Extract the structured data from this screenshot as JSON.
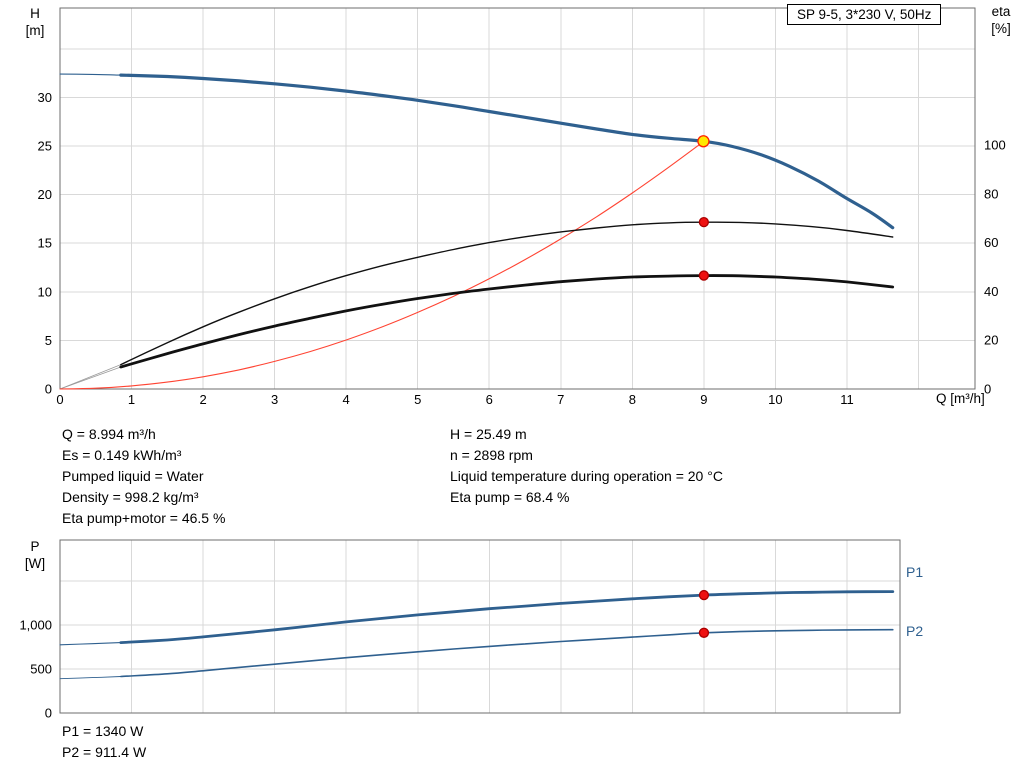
{
  "info_block": {
    "left": [
      "Q = 8.994 m³/h",
      "Es = 0.149 kWh/m³",
      "Pumped liquid = Water",
      "Density = 998.2 kg/m³",
      "Eta pump+motor = 46.5 %"
    ],
    "right": [
      "H = 25.49 m",
      "n = 2898 rpm",
      "Liquid temperature during operation = 20 °C",
      "Eta pump = 68.4 %"
    ]
  },
  "footer_block": [
    "P1 = 1340 W",
    "P2 = 911.4 W"
  ],
  "colors": {
    "curve_blue": "#2f608f",
    "curve_black": "#111111",
    "system_red": "#ff4433",
    "marker_red": "#ee1111",
    "marker_yellow": "#ffe800",
    "grid": "#d9d9d9",
    "frame": "#6e6e6e"
  },
  "chart_data": [
    {
      "type": "line",
      "title": "SP 9-5, 3*230 V, 50Hz",
      "xlabel": "Q [m³/h]",
      "ylabel_left": "H\n[m]",
      "ylabel_right": "eta\n[%]",
      "x_range": [
        0,
        12.79
      ],
      "x_grid": [
        1,
        2,
        3,
        4,
        5,
        6,
        7,
        8,
        9,
        10,
        11,
        12
      ],
      "x_ticks": [
        {
          "v": 0,
          "label": "0"
        },
        {
          "v": 1,
          "label": "1"
        },
        {
          "v": 2,
          "label": "2"
        },
        {
          "v": 3,
          "label": "3"
        },
        {
          "v": 4,
          "label": "4"
        },
        {
          "v": 5,
          "label": "5"
        },
        {
          "v": 6,
          "label": "6"
        },
        {
          "v": 7,
          "label": "7"
        },
        {
          "v": 8,
          "label": "8"
        },
        {
          "v": 9,
          "label": "9"
        },
        {
          "v": 10,
          "label": "10"
        },
        {
          "v": 11,
          "label": "11"
        }
      ],
      "y_left": {
        "range": [
          0,
          39.2
        ],
        "grid": [
          5,
          10,
          15,
          20,
          25,
          30,
          35
        ],
        "ticks": [
          {
            "v": 0,
            "label": "0"
          },
          {
            "v": 5,
            "label": "5"
          },
          {
            "v": 10,
            "label": "10"
          },
          {
            "v": 15,
            "label": "15"
          },
          {
            "v": 20,
            "label": "20"
          },
          {
            "v": 25,
            "label": "25"
          },
          {
            "v": 30,
            "label": "30"
          }
        ]
      },
      "y_right": {
        "range": [
          0,
          156.2
        ],
        "ticks": [
          {
            "v": 0,
            "label": "0"
          },
          {
            "v": 20,
            "label": "20"
          },
          {
            "v": 40,
            "label": "40"
          },
          {
            "v": 60,
            "label": "60"
          },
          {
            "v": 80,
            "label": "80"
          },
          {
            "v": 100,
            "label": "100"
          }
        ]
      },
      "grid_color": "#d9d9d9",
      "frame_color": "#6e6e6e",
      "series": [
        {
          "name": "pump-head-lead",
          "axis": "left",
          "color": "#2f608f",
          "width": 1.1,
          "points": [
            [
              0,
              32.4
            ],
            [
              0.45,
              32.37
            ],
            [
              0.85,
              32.3
            ]
          ]
        },
        {
          "name": "eta-pump-lead",
          "axis": "right",
          "color": "#9a9a9a",
          "width": 0.8,
          "points": [
            [
              0,
              0
            ],
            [
              0.85,
              10
            ]
          ]
        },
        {
          "name": "eta-pump-motor-lead",
          "axis": "right",
          "color": "#9a9a9a",
          "width": 0.8,
          "points": [
            [
              0,
              0
            ],
            [
              0.85,
              9
            ]
          ]
        },
        {
          "name": "system-curve",
          "axis": "left",
          "color": "#ff4433",
          "width": 1.1,
          "points": [
            [
              0,
              0
            ],
            [
              0.5,
              0.08
            ],
            [
              1,
              0.32
            ],
            [
              1.5,
              0.71
            ],
            [
              2,
              1.26
            ],
            [
              2.5,
              1.97
            ],
            [
              3,
              2.84
            ],
            [
              3.5,
              3.86
            ],
            [
              4,
              5.04
            ],
            [
              4.5,
              6.38
            ],
            [
              5,
              7.88
            ],
            [
              5.5,
              9.53
            ],
            [
              6,
              11.34
            ],
            [
              6.5,
              13.31
            ],
            [
              7,
              15.44
            ],
            [
              7.5,
              17.72
            ],
            [
              8,
              20.17
            ],
            [
              8.5,
              22.77
            ],
            [
              9,
              25.49
            ]
          ]
        },
        {
          "name": "pump-head",
          "axis": "left",
          "color": "#2f608f",
          "width": 3.2,
          "points": [
            [
              0.85,
              32.3
            ],
            [
              1.5,
              32.15
            ],
            [
              2,
              31.95
            ],
            [
              2.5,
              31.7
            ],
            [
              3,
              31.4
            ],
            [
              3.5,
              31.05
            ],
            [
              4,
              30.65
            ],
            [
              4.5,
              30.2
            ],
            [
              5,
              29.7
            ],
            [
              5.5,
              29.15
            ],
            [
              6,
              28.55
            ],
            [
              6.5,
              27.95
            ],
            [
              7,
              27.35
            ],
            [
              7.5,
              26.75
            ],
            [
              8,
              26.2
            ],
            [
              8.5,
              25.8
            ],
            [
              9,
              25.49
            ],
            [
              9.4,
              24.95
            ],
            [
              9.8,
              24.1
            ],
            [
              10.2,
              22.9
            ],
            [
              10.6,
              21.4
            ],
            [
              11,
              19.6
            ],
            [
              11.35,
              18.1
            ],
            [
              11.64,
              16.6
            ]
          ]
        },
        {
          "name": "eta-pump",
          "axis": "right",
          "color": "#111111",
          "width": 1.4,
          "points": [
            [
              0.85,
              10
            ],
            [
              1.5,
              19
            ],
            [
              2,
              25.5
            ],
            [
              2.5,
              31.5
            ],
            [
              3,
              37
            ],
            [
              3.5,
              42
            ],
            [
              4,
              46.5
            ],
            [
              4.5,
              50.5
            ],
            [
              5,
              54
            ],
            [
              5.5,
              57.2
            ],
            [
              6,
              60
            ],
            [
              6.5,
              62.4
            ],
            [
              7,
              64.4
            ],
            [
              7.5,
              66
            ],
            [
              8,
              67.3
            ],
            [
              8.5,
              68.1
            ],
            [
              9,
              68.4
            ],
            [
              9.5,
              68.3
            ],
            [
              10,
              67.7
            ],
            [
              10.5,
              66.6
            ],
            [
              11,
              65
            ],
            [
              11.64,
              62.3
            ]
          ]
        },
        {
          "name": "eta-pump-motor",
          "axis": "right",
          "color": "#111111",
          "width": 2.8,
          "points": [
            [
              0.85,
              9
            ],
            [
              1.5,
              14.5
            ],
            [
              2,
              18.5
            ],
            [
              2.5,
              22.3
            ],
            [
              3,
              25.8
            ],
            [
              3.5,
              29
            ],
            [
              4,
              32
            ],
            [
              4.5,
              34.7
            ],
            [
              5,
              37.1
            ],
            [
              5.5,
              39.2
            ],
            [
              6,
              41
            ],
            [
              6.5,
              42.6
            ],
            [
              7,
              44
            ],
            [
              7.5,
              45.1
            ],
            [
              8,
              45.9
            ],
            [
              8.5,
              46.3
            ],
            [
              9,
              46.5
            ],
            [
              9.5,
              46.4
            ],
            [
              10,
              45.9
            ],
            [
              10.5,
              45.1
            ],
            [
              11,
              43.9
            ],
            [
              11.64,
              41.8
            ]
          ]
        }
      ],
      "markers": [
        {
          "name": "eta-pump-point",
          "axis": "right",
          "q": 9,
          "v": 68.4,
          "fill": "#ee1111",
          "stroke": "#aa0000",
          "r": 4.5
        },
        {
          "name": "eta-pump-motor-point",
          "axis": "right",
          "q": 9,
          "v": 46.5,
          "fill": "#ee1111",
          "stroke": "#aa0000",
          "r": 4.5
        },
        {
          "name": "duty-point",
          "axis": "left",
          "q": 8.994,
          "v": 25.49,
          "fill": "#ffe800",
          "stroke": "#ff2200",
          "r": 5.5
        }
      ]
    },
    {
      "type": "line",
      "ylabel_left": "P\n[W]",
      "x_range": [
        0,
        11.74
      ],
      "x_grid": [
        1,
        2,
        3,
        4,
        5,
        6,
        7,
        8,
        9,
        10,
        11
      ],
      "x_ticks": [],
      "y_left": {
        "range": [
          0,
          1966
        ],
        "grid": [
          500,
          1000,
          1500
        ],
        "ticks": [
          {
            "v": 0,
            "label": "0"
          },
          {
            "v": 500,
            "label": "500"
          },
          {
            "v": 1000,
            "label": "1,000"
          }
        ]
      },
      "grid_color": "#d9d9d9",
      "frame_color": "#6e6e6e",
      "series": [
        {
          "name": "p1-lead",
          "axis": "left",
          "color": "#2f608f",
          "width": 1.1,
          "points": [
            [
              0,
              775
            ],
            [
              0.45,
              788
            ],
            [
              0.85,
              800
            ]
          ]
        },
        {
          "name": "p2-lead",
          "axis": "left",
          "color": "#2f608f",
          "width": 0.9,
          "points": [
            [
              0,
              390
            ],
            [
              0.45,
              402
            ],
            [
              0.85,
              415
            ]
          ]
        },
        {
          "name": "p1",
          "axis": "left",
          "color": "#2f608f",
          "width": 2.8,
          "points": [
            [
              0.85,
              800
            ],
            [
              1.5,
              830
            ],
            [
              2,
              865
            ],
            [
              2.5,
              905
            ],
            [
              3,
              945
            ],
            [
              3.5,
              990
            ],
            [
              4,
              1035
            ],
            [
              4.5,
              1075
            ],
            [
              5,
              1115
            ],
            [
              5.5,
              1150
            ],
            [
              6,
              1185
            ],
            [
              6.5,
              1215
            ],
            [
              7,
              1245
            ],
            [
              7.5,
              1272
            ],
            [
              8,
              1298
            ],
            [
              8.5,
              1320
            ],
            [
              9,
              1340
            ],
            [
              9.5,
              1355
            ],
            [
              10,
              1365
            ],
            [
              10.5,
              1372
            ],
            [
              11,
              1377
            ],
            [
              11.64,
              1380
            ]
          ]
        },
        {
          "name": "p2",
          "axis": "left",
          "color": "#2f608f",
          "width": 1.6,
          "points": [
            [
              0.85,
              415
            ],
            [
              1.5,
              445
            ],
            [
              2,
              480
            ],
            [
              2.5,
              518
            ],
            [
              3,
              555
            ],
            [
              3.5,
              592
            ],
            [
              4,
              628
            ],
            [
              4.5,
              662
            ],
            [
              5,
              695
            ],
            [
              5.5,
              727
            ],
            [
              6,
              757
            ],
            [
              6.5,
              785
            ],
            [
              7,
              812
            ],
            [
              7.5,
              838
            ],
            [
              8,
              862
            ],
            [
              8.5,
              888
            ],
            [
              9,
              911.4
            ],
            [
              9.5,
              925
            ],
            [
              10,
              934
            ],
            [
              10.5,
              940
            ],
            [
              11,
              944
            ],
            [
              11.64,
              947
            ]
          ]
        }
      ],
      "markers": [
        {
          "name": "p1-point",
          "axis": "left",
          "q": 9,
          "v": 1340,
          "fill": "#ee1111",
          "stroke": "#aa0000",
          "r": 4.5
        },
        {
          "name": "p2-point",
          "axis": "left",
          "q": 9,
          "v": 911.4,
          "fill": "#ee1111",
          "stroke": "#aa0000",
          "r": 4.5
        }
      ],
      "series_labels": [
        {
          "text": "P1"
        },
        {
          "text": "P2"
        }
      ]
    }
  ]
}
